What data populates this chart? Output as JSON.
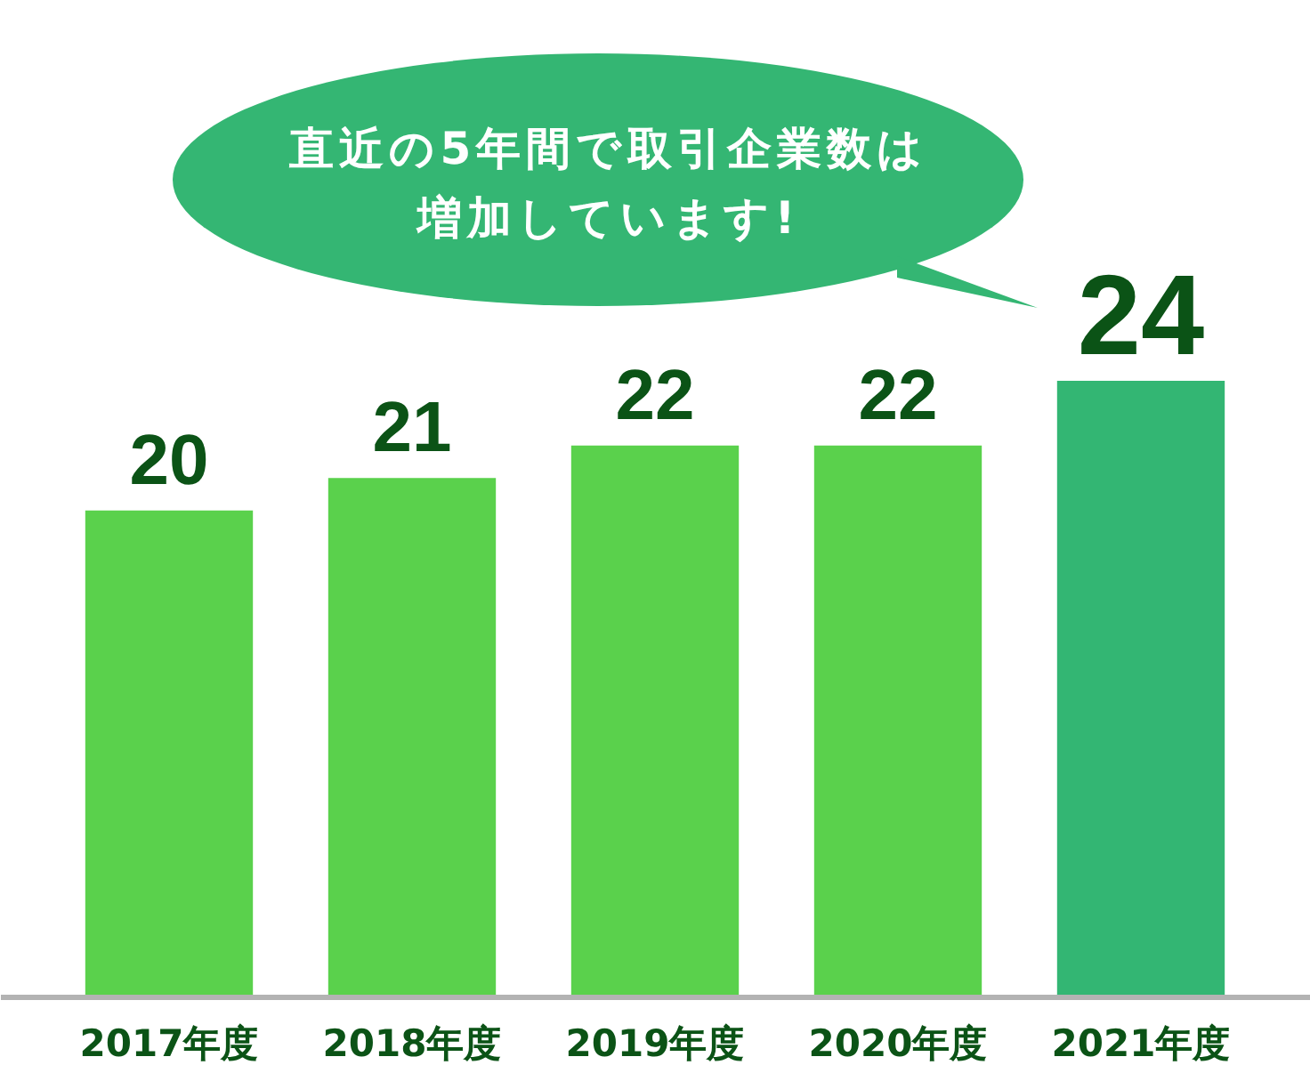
{
  "chart_data": {
    "type": "bar",
    "categories": [
      "2017年度",
      "2018年度",
      "2019年度",
      "2020年度",
      "2021年度"
    ],
    "values": [
      20,
      21,
      22,
      22,
      24
    ],
    "colors": [
      "#5ad14c",
      "#5ad14c",
      "#5ad14c",
      "#5ad14c",
      "#33b673"
    ],
    "ylim": [
      5,
      24
    ],
    "data_labels": true,
    "grid": false,
    "tick_labels": "x",
    "annotations": [
      "直近の5年間で取引企業数は増加しています!"
    ]
  }
}
